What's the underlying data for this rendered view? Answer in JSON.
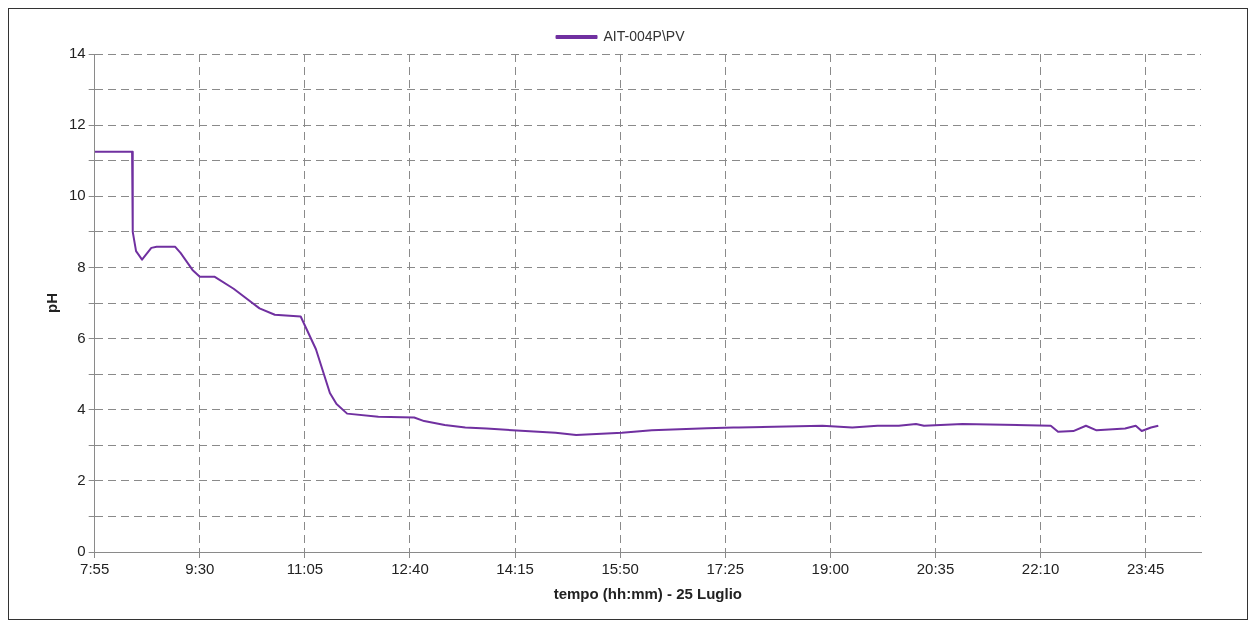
{
  "chart_data": {
    "type": "line",
    "xlabel": "tempo (hh:mm) - 25 Luglio",
    "ylabel": "pH",
    "xlim": [
      7.9167,
      24.5833
    ],
    "xticks": [
      {
        "value": 7.9167,
        "label": "7:55"
      },
      {
        "value": 9.5,
        "label": "9:30"
      },
      {
        "value": 11.0833,
        "label": "11:05"
      },
      {
        "value": 12.6667,
        "label": "12:40"
      },
      {
        "value": 14.25,
        "label": "14:15"
      },
      {
        "value": 15.8333,
        "label": "15:50"
      },
      {
        "value": 17.4167,
        "label": "17:25"
      },
      {
        "value": 19,
        "label": "19:00"
      },
      {
        "value": 20.5833,
        "label": "20:35"
      },
      {
        "value": 22.1667,
        "label": "22:10"
      },
      {
        "value": 23.75,
        "label": "23:45"
      }
    ],
    "ylim": [
      0,
      14
    ],
    "yticks": [
      0,
      {
        "value": 1,
        "label": null
      },
      2,
      {
        "value": 3,
        "label": null
      },
      4,
      {
        "value": 5,
        "label": null
      },
      6,
      {
        "value": 7,
        "label": null
      },
      8,
      {
        "value": 9,
        "label": null
      },
      10,
      {
        "value": 11,
        "label": null
      },
      12,
      {
        "value": 13,
        "label": null
      },
      14
    ],
    "grid": true,
    "legend": "top",
    "line_style": "solid",
    "marker": "none",
    "series": [
      {
        "name": "AIT-004P\\PV",
        "color": "#7030a0",
        "x": [
          7.92,
          8.48,
          8.49,
          8.54,
          8.63,
          8.77,
          8.85,
          9.13,
          9.21,
          9.39,
          9.5,
          9.72,
          10.01,
          10.4,
          10.63,
          11.02,
          11.25,
          11.46,
          11.56,
          11.72,
          12.19,
          12.73,
          12.88,
          13.19,
          13.5,
          13.82,
          14.86,
          15.17,
          15.86,
          16.31,
          17.14,
          17.54,
          17.62,
          18.88,
          19.33,
          19.71,
          20.03,
          20.29,
          20.41,
          20.99,
          22.32,
          22.43,
          22.66,
          22.85,
          23.01,
          23.44,
          23.6,
          23.69,
          23.83,
          23.94
        ],
        "values": [
          11.25,
          11.25,
          9.0,
          8.46,
          8.22,
          8.55,
          8.58,
          8.58,
          8.41,
          7.93,
          7.74,
          7.74,
          7.4,
          6.85,
          6.67,
          6.62,
          5.7,
          4.47,
          4.16,
          3.89,
          3.8,
          3.78,
          3.68,
          3.57,
          3.5,
          3.47,
          3.35,
          3.29,
          3.35,
          3.42,
          3.48,
          3.5,
          3.5,
          3.55,
          3.5,
          3.55,
          3.55,
          3.6,
          3.55,
          3.6,
          3.55,
          3.38,
          3.4,
          3.55,
          3.42,
          3.47,
          3.55,
          3.4,
          3.5,
          3.55
        ]
      }
    ]
  }
}
